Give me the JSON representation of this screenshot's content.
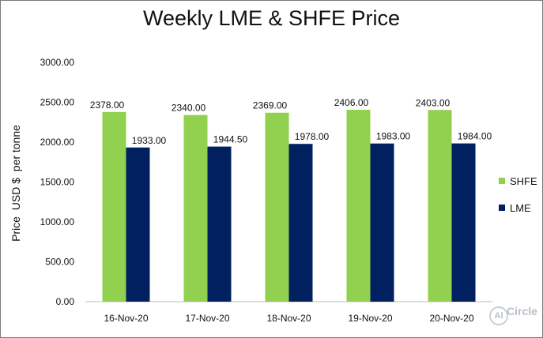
{
  "chart_data": {
    "type": "bar",
    "title": "Weekly LME & SHFE Price",
    "ylabel": "Price  USD $  per tonne",
    "xlabel": "",
    "categories": [
      "16-Nov-20",
      "17-Nov-20",
      "18-Nov-20",
      "19-Nov-20",
      "20-Nov-20"
    ],
    "ylim": [
      0,
      3000
    ],
    "yticks": [
      0,
      500,
      1000,
      1500,
      2000,
      2500,
      3000
    ],
    "ytick_labels": [
      "0.00",
      "500.00",
      "1000.00",
      "1500.00",
      "2000.00",
      "2500.00",
      "3000.00"
    ],
    "series": [
      {
        "name": "SHFE",
        "color": "#92d050",
        "values": [
          2378.0,
          2340.0,
          2369.0,
          2406.0,
          2403.0
        ],
        "labels": [
          "2378.00",
          "2340.00",
          "2369.00",
          "2406.00",
          "2403.00"
        ]
      },
      {
        "name": "LME",
        "color": "#002060",
        "values": [
          1933.0,
          1944.5,
          1978.0,
          1983.0,
          1984.0
        ],
        "labels": [
          "1933.00",
          "1944.50",
          "1978.00",
          "1983.00",
          "1984.00"
        ]
      }
    ],
    "grid": false,
    "legend": "right"
  },
  "logo": {
    "mark": "Al",
    "text": "Circle"
  }
}
